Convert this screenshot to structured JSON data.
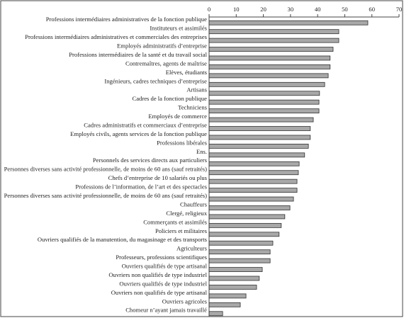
{
  "chart_data": {
    "type": "barh",
    "categories": [
      "Professions intermédiaires administratives de la fonction publique",
      "Instituteurs et assimilés",
      "Professions intermédiaires administratives et commerciales des entreprises",
      "Employés administratifs d’entreprise",
      "Professions intermédiaires de la santé et du travail social",
      "Contremaîtres, agents de maîtrise",
      "Elèves, étudiants",
      "Ingénieurs, cadres techniques d’entreprise",
      "Artisans",
      "Cadres de la fonction publique",
      "Techniciens",
      "Employés de commerce",
      "Cadres administratifs et commerciaux d’entreprise",
      "Employés civils, agents services de la fonction publique",
      "Professions libérales",
      "Ens.",
      "Personnels des services directs aux particuliers",
      "Personnes diverses sans activité professionnelle, de moins de 60 ans (sauf retraités)",
      "Chefs d’entreprise de 10 salariés ou plus",
      "Professions de l’information, de l’art et des spectacles",
      "Personnes diverses sans activité professionnelle, de moins de 60 ans (sauf retraités)",
      "Chauffeurs",
      "Clergé, religieux",
      "Commerçants et assimilés",
      "Policiers et militaires",
      "Ouvriers qualifiés de la manutention, du magasinage et des transports",
      "Agriculteurs",
      "Professeurs, professions scientifiques",
      "Ouvriers qualifiés de type artisanal",
      "Ouvriers non qualifiés de type industriel",
      "Ouvriers qualifiés de type industriel",
      "Ouvriers non qualifiés de type artisanal",
      "Ouvriers agricoles",
      "Chomeur n’ayant jamais travaillé"
    ],
    "values": [
      58.5,
      47.8,
      47.8,
      45.7,
      44.6,
      44.6,
      43.9,
      42.6,
      40.7,
      40.5,
      40.5,
      38.4,
      37.3,
      37.3,
      36.6,
      35.2,
      33.2,
      32.9,
      32.4,
      32.4,
      31.1,
      29.8,
      27.9,
      26.6,
      25.8,
      23.5,
      22.5,
      22.5,
      19.6,
      18.5,
      17.5,
      13.6,
      11.5,
      5
    ],
    "color": "#a8a8a8",
    "xlim": [
      0,
      70
    ],
    "xticks": [
      0,
      10,
      20,
      30,
      40,
      50,
      60,
      70
    ]
  }
}
